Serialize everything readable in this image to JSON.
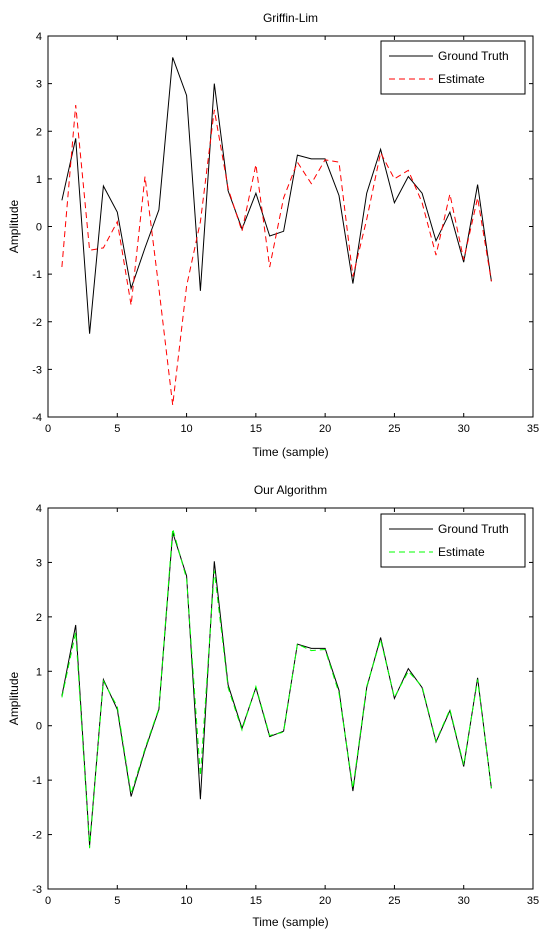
{
  "chart_data": [
    {
      "type": "line",
      "title": "Griffin-Lim",
      "xlabel": "Time (sample)",
      "ylabel": "Amplitude",
      "xlim": [
        0,
        35
      ],
      "ylim": [
        -4,
        4
      ],
      "xticks": [
        0,
        5,
        10,
        15,
        20,
        25,
        30,
        35
      ],
      "yticks": [
        -4,
        -3,
        -2,
        -1,
        0,
        1,
        2,
        3,
        4
      ],
      "grid": false,
      "legend": "top-right",
      "x": [
        1,
        2,
        3,
        4,
        5,
        6,
        7,
        8,
        9,
        10,
        11,
        12,
        13,
        14,
        15,
        16,
        17,
        18,
        19,
        20,
        21,
        22,
        23,
        24,
        25,
        26,
        27,
        28,
        29,
        30,
        31,
        32
      ],
      "series": [
        {
          "name": "Ground Truth",
          "color": "#000000",
          "dash": "solid",
          "values": [
            0.55,
            1.85,
            -2.25,
            0.85,
            0.3,
            -1.3,
            -0.45,
            0.35,
            3.55,
            2.75,
            -1.35,
            3.0,
            0.75,
            -0.05,
            0.7,
            -0.2,
            -0.1,
            1.5,
            1.42,
            1.42,
            0.65,
            -1.2,
            0.7,
            1.62,
            0.5,
            1.05,
            0.7,
            -0.3,
            0.3,
            -0.75,
            0.88,
            -1.15
          ]
        },
        {
          "name": "Estimate",
          "color": "#ff0000",
          "dash": "dashed",
          "values": [
            -0.85,
            2.55,
            -0.5,
            -0.45,
            0.1,
            -1.65,
            1.05,
            -1.3,
            -3.75,
            -1.25,
            0.1,
            2.45,
            0.8,
            -0.1,
            1.3,
            -0.85,
            0.6,
            1.35,
            0.9,
            1.4,
            1.35,
            -1.05,
            0.15,
            1.55,
            1.0,
            1.18,
            0.5,
            -0.6,
            0.68,
            -0.7,
            0.6,
            -1.15
          ]
        }
      ]
    },
    {
      "type": "line",
      "title": "Our Algorithm",
      "xlabel": "Time (sample)",
      "ylabel": "Amplitude",
      "xlim": [
        0,
        35
      ],
      "ylim": [
        -3,
        4
      ],
      "xticks": [
        0,
        5,
        10,
        15,
        20,
        25,
        30,
        35
      ],
      "yticks": [
        -3,
        -2,
        -1,
        0,
        1,
        2,
        3,
        4
      ],
      "grid": false,
      "legend": "top-right",
      "x": [
        1,
        2,
        3,
        4,
        5,
        6,
        7,
        8,
        9,
        10,
        11,
        12,
        13,
        14,
        15,
        16,
        17,
        18,
        19,
        20,
        21,
        22,
        23,
        24,
        25,
        26,
        27,
        28,
        29,
        30,
        31,
        32
      ],
      "series": [
        {
          "name": "Ground Truth",
          "color": "#000000",
          "dash": "solid",
          "values": [
            0.55,
            1.85,
            -2.2,
            0.85,
            0.3,
            -1.3,
            -0.45,
            0.3,
            3.55,
            2.75,
            -1.35,
            3.02,
            0.75,
            -0.05,
            0.7,
            -0.2,
            -0.1,
            1.5,
            1.42,
            1.42,
            0.65,
            -1.2,
            0.7,
            1.62,
            0.5,
            1.05,
            0.7,
            -0.3,
            0.28,
            -0.75,
            0.88,
            -1.15
          ]
        },
        {
          "name": "Estimate",
          "color": "#00ff00",
          "dash": "dashed",
          "values": [
            0.52,
            1.72,
            -2.25,
            0.82,
            0.35,
            -1.25,
            -0.42,
            0.32,
            3.62,
            2.7,
            -0.92,
            2.85,
            0.7,
            -0.08,
            0.72,
            -0.18,
            -0.12,
            1.5,
            1.38,
            1.4,
            0.6,
            -1.15,
            0.72,
            1.58,
            0.52,
            1.0,
            0.72,
            -0.28,
            0.3,
            -0.72,
            0.85,
            -1.15
          ]
        }
      ]
    }
  ]
}
